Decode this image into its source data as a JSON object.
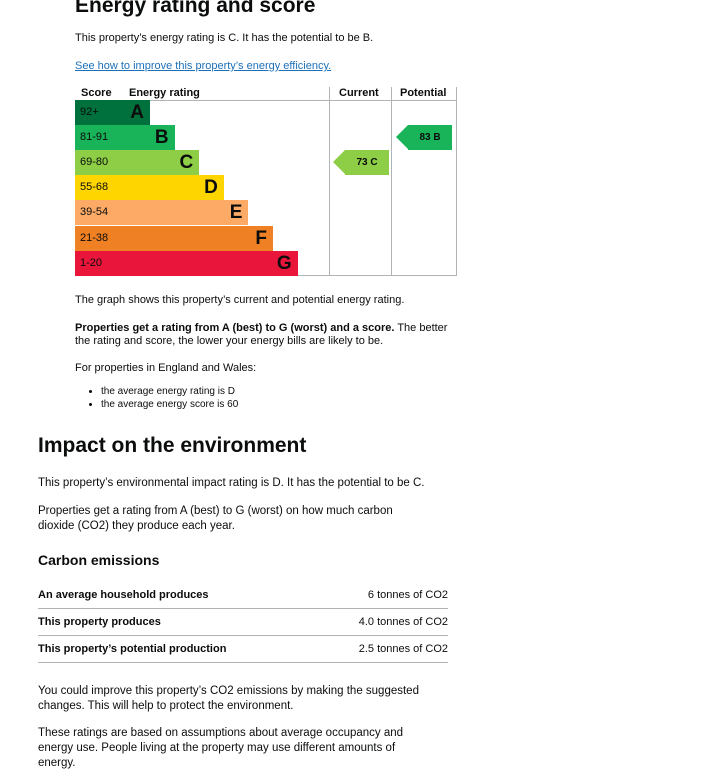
{
  "energy": {
    "title": "Energy rating and score",
    "summary": "This property’s energy rating is C. It has the potential to be B.",
    "link": "See how to improve this property’s energy efficiency.",
    "chart": {
      "headers": {
        "score": "Score",
        "rating": "Energy rating",
        "current": "Current",
        "potential": "Potential"
      },
      "bands": [
        {
          "range": "92+",
          "letter": "A",
          "color": "#00703c"
        },
        {
          "range": "81-91",
          "letter": "B",
          "color": "#19b459"
        },
        {
          "range": "69-80",
          "letter": "C",
          "color": "#8dce46"
        },
        {
          "range": "55-68",
          "letter": "D",
          "color": "#ffd500"
        },
        {
          "range": "39-54",
          "letter": "E",
          "color": "#fcaa65"
        },
        {
          "range": "21-38",
          "letter": "F",
          "color": "#ef8023"
        },
        {
          "range": "1-20",
          "letter": "G",
          "color": "#e9153b"
        }
      ],
      "current": {
        "label": "73 C",
        "score": 73,
        "band": "C",
        "color": "#8dce46"
      },
      "potential": {
        "label": "83 B",
        "score": 83,
        "band": "B",
        "color": "#19b459"
      }
    },
    "caption": "The graph shows this property’s current and potential energy rating.",
    "rating_bold": "Properties get a rating from A (best) to G (worst) and a score.",
    "rating_rest": " The better the rating and score, the lower your energy bills are likely to be.",
    "england_wales": "For properties in England and Wales:",
    "bullets": [
      "the average energy rating is D",
      "the average energy score is 60"
    ]
  },
  "environment": {
    "title": "Impact on the environment",
    "summary": "This property’s environmental impact rating is D. It has the potential to be C.",
    "rating_info": "Properties get a rating from A (best) to G (worst) on how much carbon dioxide (CO2) they produce each year.",
    "carbon_title": "Carbon emissions",
    "rows": [
      {
        "label": "An average household produces",
        "value": "6 tonnes of CO2"
      },
      {
        "label": "This property produces",
        "value": "4.0 tonnes of CO2"
      },
      {
        "label": "This property’s potential production",
        "value": "2.5 tonnes of CO2"
      }
    ],
    "improve": "You could improve this property’s CO2 emissions by making the suggested changes. This will help to protect the environment.",
    "assumptions": "These ratings are based on assumptions about average occupancy and energy use. People living at the property may use different amounts of energy."
  }
}
